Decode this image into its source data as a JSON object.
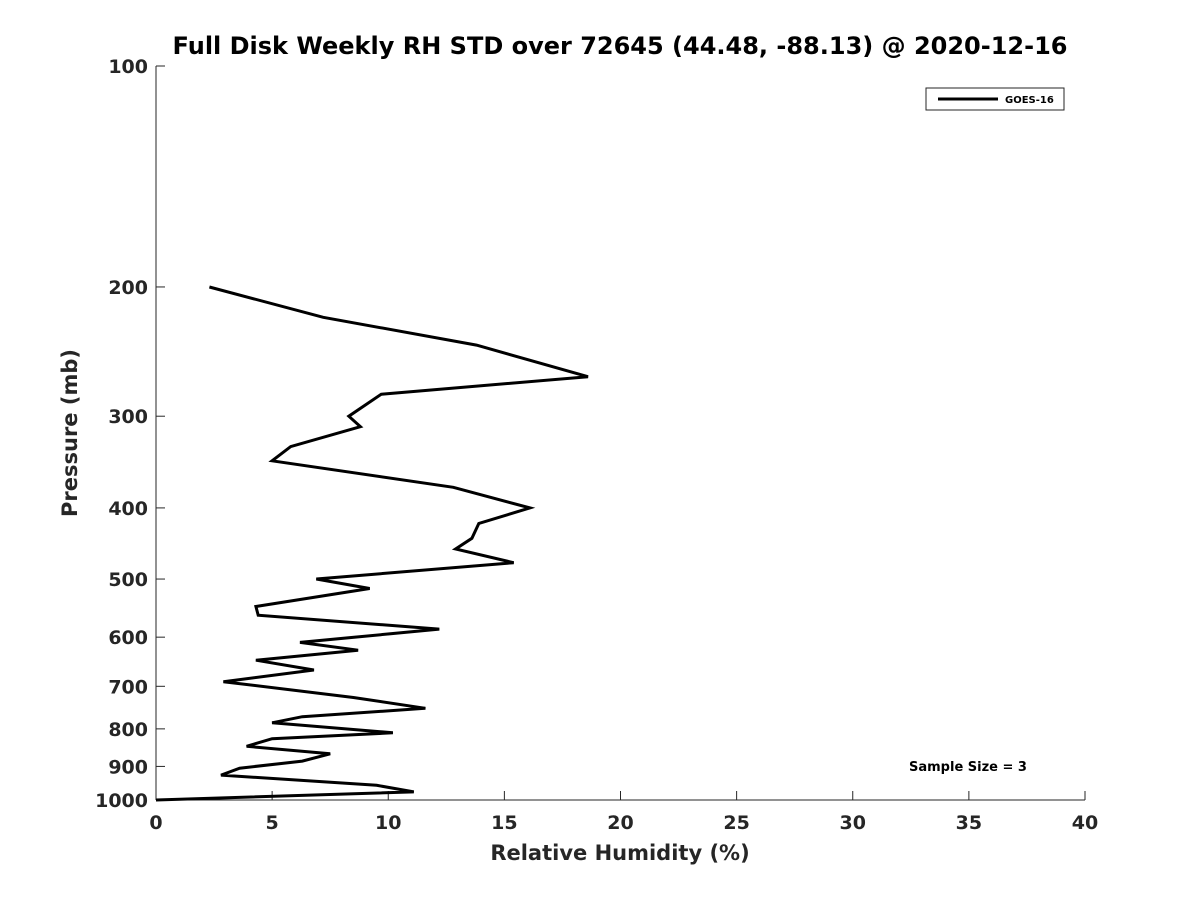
{
  "chart_data": {
    "type": "line",
    "title": "Full Disk Weekly RH STD over 72645 (44.48, -88.13) @ 2020-12-16",
    "xlabel": "Relative Humidity (%)",
    "ylabel": "Pressure (mb)",
    "xlim": [
      0,
      40
    ],
    "ylim": [
      100,
      1000
    ],
    "y_scale": "log",
    "y_reversed": true,
    "grid": false,
    "x_ticks": [
      0,
      5,
      10,
      15,
      20,
      25,
      30,
      35,
      40
    ],
    "x_tick_labels": [
      "0",
      "5",
      "10",
      "15",
      "20",
      "25",
      "30",
      "35",
      "40"
    ],
    "y_ticks": [
      100,
      200,
      300,
      400,
      500,
      600,
      700,
      800,
      900,
      1000
    ],
    "y_tick_labels": [
      "100",
      "200",
      "300",
      "400",
      "500",
      "600",
      "700",
      "800",
      "900",
      "1000"
    ],
    "legend_position": "top-right",
    "series": [
      {
        "name": "GOES-16",
        "color": "#000000",
        "x": [
          2.3,
          7.2,
          13.8,
          18.6,
          9.7,
          8.3,
          8.8,
          5.8,
          5.0,
          12.8,
          16.1,
          13.9,
          13.6,
          12.9,
          15.4,
          6.9,
          9.2,
          4.3,
          4.4,
          12.2,
          6.2,
          8.7,
          4.3,
          6.8,
          2.9,
          8.5,
          11.6,
          6.3,
          5.0,
          10.2,
          5.0,
          3.9,
          7.5,
          6.3,
          3.6,
          2.8,
          9.5,
          11.1,
          0.0
        ],
        "y": [
          200,
          220,
          240,
          265,
          280,
          300,
          310,
          330,
          345,
          375,
          400,
          420,
          440,
          455,
          475,
          500,
          515,
          545,
          560,
          585,
          610,
          625,
          645,
          665,
          690,
          725,
          750,
          770,
          785,
          810,
          825,
          845,
          865,
          885,
          905,
          925,
          955,
          975,
          1000
        ]
      }
    ],
    "annotations": [
      "Sample Size = 3"
    ]
  }
}
